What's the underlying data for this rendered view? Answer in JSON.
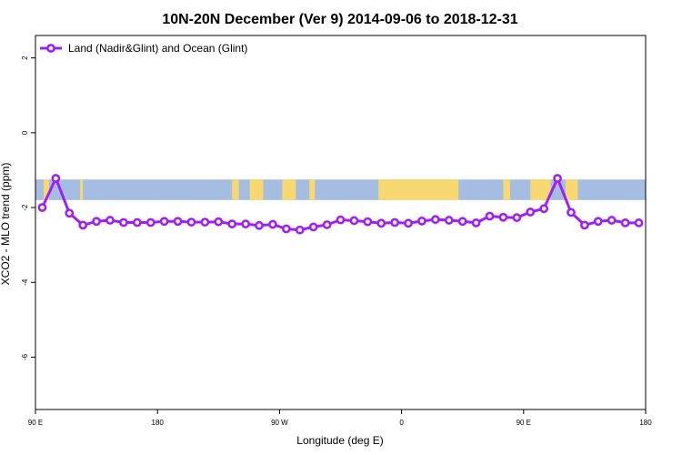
{
  "chart_data": {
    "type": "line",
    "title": "10N-20N December (Ver 9)   2014-09-06 to 2018-12-31",
    "xlabel": "Longitude (deg E)",
    "ylabel": "XCO2 - MLO trend (ppm)",
    "x_ticks": [
      {
        "value": 90,
        "label": "90 E"
      },
      {
        "value": 180,
        "label": "180"
      },
      {
        "value": 270,
        "label": "90 W"
      },
      {
        "value": 360,
        "label": "0"
      },
      {
        "value": 450,
        "label": "90 E"
      },
      {
        "value": 540,
        "label": "180"
      }
    ],
    "y_ticks": [
      2,
      0,
      -2,
      -4,
      -6
    ],
    "xlim": [
      90,
      540
    ],
    "ylim": [
      -7.4,
      2.6
    ],
    "grid": false,
    "legend_position": "top-left",
    "colors": {
      "line": "#a020f0",
      "ocean": "#a5bde0",
      "land": "#f8d870"
    },
    "map_band": {
      "y_top": -1.25,
      "y_bottom": -1.8,
      "land_longitudes": [
        [
          96,
          100
        ],
        [
          123,
          125
        ],
        [
          235,
          240
        ],
        [
          248,
          258
        ],
        [
          272,
          282
        ],
        [
          292,
          296
        ],
        [
          343,
          402
        ],
        [
          435,
          440
        ],
        [
          455,
          470
        ],
        [
          481,
          490
        ]
      ]
    },
    "series": [
      {
        "name": "Land (Nadir&Glint) and Ocean (Glint)",
        "x": [
          95,
          105,
          115,
          125,
          135,
          145,
          155,
          165,
          175,
          185,
          195,
          205,
          215,
          225,
          235,
          245,
          255,
          265,
          275,
          285,
          295,
          305,
          315,
          325,
          335,
          345,
          355,
          365,
          375,
          385,
          395,
          405,
          415,
          425,
          435,
          445,
          455,
          465,
          475,
          485,
          495,
          505,
          515,
          525,
          535
        ],
        "y": [
          -2.0,
          -1.22,
          -2.15,
          -2.47,
          -2.37,
          -2.34,
          -2.4,
          -2.4,
          -2.4,
          -2.37,
          -2.37,
          -2.39,
          -2.39,
          -2.38,
          -2.44,
          -2.44,
          -2.48,
          -2.45,
          -2.57,
          -2.6,
          -2.52,
          -2.46,
          -2.33,
          -2.35,
          -2.38,
          -2.42,
          -2.4,
          -2.42,
          -2.36,
          -2.32,
          -2.34,
          -2.37,
          -2.41,
          -2.23,
          -2.26,
          -2.27,
          -2.12,
          -2.03,
          -1.22,
          -2.13,
          -2.47,
          -2.37,
          -2.34,
          -2.41,
          -2.41
        ]
      }
    ]
  }
}
